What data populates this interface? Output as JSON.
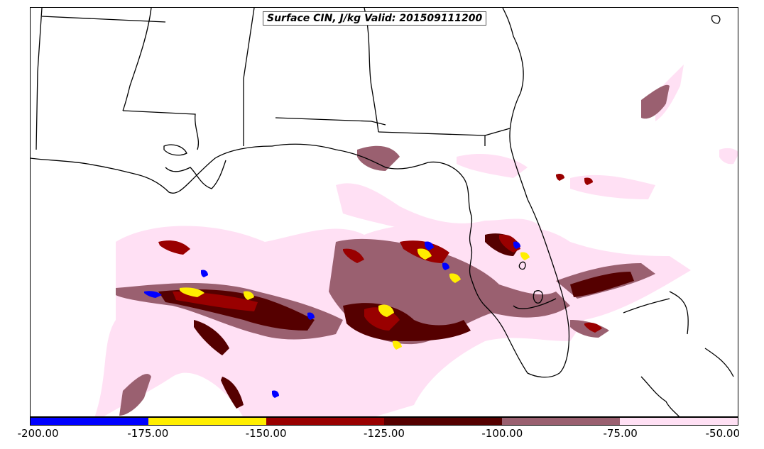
{
  "title": "Surface CIN, J/kg Valid: 201509111200",
  "colorbar": {
    "colors": [
      "#0000ff",
      "#ffee00",
      "#990000",
      "#550000",
      "#9a6070",
      "#ffe0f4"
    ],
    "ticks": [
      "-200.00",
      "-175.00",
      "-150.00",
      "-125.00",
      "-100.00",
      "-75.00",
      "-50.00"
    ]
  },
  "map_content": {
    "region": "Gulf of Mexico / Southeast US",
    "coastline_color": "#000000",
    "state_border_color": "#000000"
  }
}
